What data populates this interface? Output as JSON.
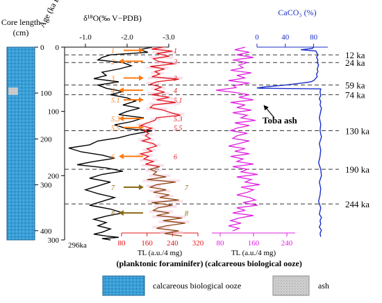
{
  "chart_data": {
    "type": "line",
    "core_column": {
      "header_line1": "Core length",
      "header_line2": "(cm)",
      "tick_labels": [
        "0",
        "100",
        "200",
        "300",
        "400"
      ],
      "fill_color": "#3aa0d8",
      "ash_layer_cm": [
        88,
        104
      ],
      "ash_color": "#c6c6c6"
    },
    "age_axis": {
      "label": "Age (ka B.P.)",
      "tick_labels": [
        "0",
        "100",
        "200",
        "300"
      ],
      "bottom_note": "296ka"
    },
    "series": [
      {
        "name": "δ¹⁸O (‰ V–PDB)",
        "color": "#000000",
        "axis_label": "δ¹⁸O(‰ V−PDB)",
        "xlim": [
          -0.5,
          -3.0
        ],
        "tick_labels": [
          "-1.0",
          "-2.0",
          "-3.0"
        ],
        "ticks": [
          -1.0,
          -2.0,
          -3.0
        ],
        "x": [
          -2.6,
          -2.3,
          -2.5,
          -1.6,
          -1.4,
          -1.3,
          -1.9,
          -2.1,
          -1.8,
          -1.4,
          -1.5,
          -1.2,
          -1.8,
          -1.3,
          -1.5,
          -1.9,
          -1.6,
          -2.0,
          -2.2,
          -1.9,
          -2.3,
          -2.0,
          -1.8,
          -2.4,
          -2.1,
          -1.7,
          -2.0,
          -2.6,
          -2.1,
          -1.8,
          -1.3,
          -1.1,
          -0.6,
          -0.9,
          -1.4,
          -1.7,
          -1.2,
          -0.8,
          -1.5,
          -1.9,
          -1.4,
          -1.1,
          -1.6,
          -1.3,
          -1.0,
          -1.3,
          -1.7,
          -1.4,
          -1.1,
          -1.6,
          -1.9,
          -1.5,
          -1.2,
          -1.5,
          -1.3,
          -1.6,
          -1.4,
          -1.2,
          -1.5,
          -1.8,
          -1.4,
          -1.6
        ],
        "y": [
          0,
          4,
          8,
          12,
          16,
          20,
          24,
          29,
          34,
          39,
          44,
          49,
          54,
          59,
          64,
          69,
          74,
          79,
          84,
          90,
          95,
          100,
          105,
          110,
          116,
          121,
          127,
          130,
          136,
          141,
          146,
          152,
          157,
          163,
          168,
          173,
          178,
          183,
          188,
          193,
          198,
          204,
          210,
          216,
          222,
          228,
          234,
          240,
          246,
          252,
          258,
          263,
          268,
          273,
          278,
          283,
          288,
          291,
          294,
          296,
          298,
          300
        ]
      },
      {
        "name": "TL (planktonic foraminifer)",
        "color": "#e0141b",
        "color_lower": "#8b4513",
        "color_split_at": 190,
        "axis_label": "TL (a.u./4 mg)",
        "subtitle": "(planktonic foraminifer)",
        "xlim": [
          80,
          320
        ],
        "tick_labels": [
          "80",
          "160",
          "240",
          "320"
        ],
        "ticks": [
          80,
          160,
          240,
          320
        ],
        "peak_labels": [
          "1",
          "2",
          "3",
          "4",
          "5.1",
          "5.3",
          "5.5",
          "6",
          "7",
          "8"
        ],
        "peak_ages": [
          5,
          22,
          48,
          67,
          82,
          111,
          125,
          170,
          218,
          258
        ],
        "x": [
          210,
          175,
          240,
          190,
          230,
          180,
          195,
          245,
          170,
          215,
          185,
          200,
          175,
          260,
          190,
          170,
          205,
          185,
          215,
          175,
          230,
          190,
          250,
          180,
          170,
          210,
          235,
          265,
          190,
          185,
          160,
          140,
          175,
          150,
          165,
          155,
          170,
          145,
          180,
          190,
          160,
          175,
          140,
          165,
          150,
          180,
          155,
          200,
          170,
          190,
          180,
          220,
          160,
          250,
          190,
          170,
          220,
          180,
          230,
          200,
          260,
          175,
          240,
          195,
          180,
          230,
          190,
          270,
          210,
          280,
          220,
          190,
          260,
          215,
          270
        ],
        "y": [
          0,
          3,
          6,
          10,
          14,
          18,
          22,
          26,
          30,
          34,
          38,
          42,
          46,
          50,
          54,
          58,
          62,
          66,
          70,
          74,
          78,
          82,
          86,
          90,
          94,
          98,
          102,
          106,
          110,
          114,
          118,
          122,
          126,
          130,
          134,
          138,
          142,
          146,
          150,
          154,
          158,
          162,
          166,
          170,
          174,
          178,
          182,
          186,
          190,
          194,
          198,
          202,
          206,
          210,
          214,
          218,
          222,
          226,
          230,
          234,
          238,
          242,
          246,
          250,
          254,
          258,
          262,
          266,
          270,
          274,
          278,
          282,
          286,
          290,
          294
        ]
      },
      {
        "name": "TL (calcareous biological ooze)",
        "color": "#e020e0",
        "axis_label": "TL (a.u./4 mg)",
        "subtitle": "(calcareous biological ooze)",
        "xlim": [
          60,
          260
        ],
        "tick_labels": [
          "80",
          "160",
          "240"
        ],
        "ticks": [
          80,
          160,
          240
        ],
        "x": [
          140,
          115,
          150,
          120,
          160,
          110,
          145,
          125,
          135,
          105,
          155,
          120,
          140,
          100,
          150,
          112,
          118,
          70,
          110,
          150,
          125,
          160,
          105,
          140,
          120,
          155,
          110,
          145,
          130,
          165,
          115,
          150,
          120,
          105,
          145,
          120,
          110,
          150,
          125,
          100,
          140,
          115,
          150,
          105,
          135,
          120,
          160,
          110,
          145,
          130,
          170,
          120,
          155,
          140,
          175,
          130,
          160,
          145,
          120,
          150,
          165,
          135,
          170,
          120,
          140,
          110,
          160,
          125,
          105,
          130,
          100,
          125,
          110
        ],
        "y": [
          0,
          4,
          8,
          12,
          16,
          20,
          24,
          28,
          32,
          36,
          40,
          44,
          48,
          52,
          56,
          60,
          63,
          67,
          70,
          74,
          78,
          82,
          86,
          90,
          94,
          98,
          102,
          106,
          110,
          114,
          118,
          122,
          126,
          130,
          134,
          138,
          142,
          146,
          150,
          154,
          158,
          162,
          166,
          170,
          174,
          178,
          182,
          186,
          190,
          194,
          198,
          202,
          206,
          210,
          214,
          218,
          222,
          226,
          230,
          234,
          238,
          242,
          246,
          250,
          254,
          258,
          262,
          266,
          270,
          274,
          278,
          282,
          286
        ]
      },
      {
        "name": "CaCO₃ (%)",
        "color": "#1a2ec8",
        "axis_label": "CaCO₃ (%)",
        "xlim": [
          0,
          100
        ],
        "tick_labels": [
          "0",
          "40",
          "80"
        ],
        "ticks": [
          0,
          40,
          80
        ],
        "x": [
          80,
          78,
          62,
          83,
          84,
          86,
          84,
          86,
          85,
          87,
          86,
          85,
          86,
          84,
          85,
          82,
          80,
          76,
          70,
          62,
          55,
          48,
          40,
          30,
          20,
          10,
          3,
          0,
          5,
          90,
          89,
          90,
          88,
          90,
          89,
          91,
          90,
          88,
          90,
          89,
          91,
          88,
          90,
          89,
          87,
          90,
          91,
          88,
          90,
          89,
          87,
          90,
          88,
          91,
          89,
          90,
          88,
          91,
          89,
          90
        ],
        "y": [
          0,
          2,
          4,
          6,
          8,
          12,
          16,
          20,
          24,
          28,
          31,
          34,
          38,
          42,
          46,
          50,
          52,
          54,
          55,
          56,
          57,
          58,
          59,
          60,
          61,
          62,
          63,
          63.5,
          64,
          65,
          70,
          75,
          80,
          85,
          90,
          95,
          100,
          110,
          120,
          130,
          140,
          150,
          160,
          170,
          180,
          190,
          200,
          210,
          220,
          230,
          240,
          250,
          260,
          265,
          270,
          275,
          280,
          285,
          290,
          295
        ]
      }
    ],
    "age_markers": {
      "labels": [
        "12 ka",
        "24 ka",
        "59 ka",
        "74 ka",
        "130 ka",
        "190 ka",
        "244 ka"
      ],
      "ages": [
        12,
        24,
        59,
        74,
        130,
        190,
        244
      ]
    },
    "annotations": [
      {
        "text": "Toba ash",
        "age": 74
      }
    ],
    "legend": [
      {
        "label": "calcareous biological ooze",
        "swatch": "#3aa0d8"
      },
      {
        "label": "ash",
        "swatch": "#c6c6c6"
      }
    ],
    "ylim": [
      0,
      300
    ]
  }
}
